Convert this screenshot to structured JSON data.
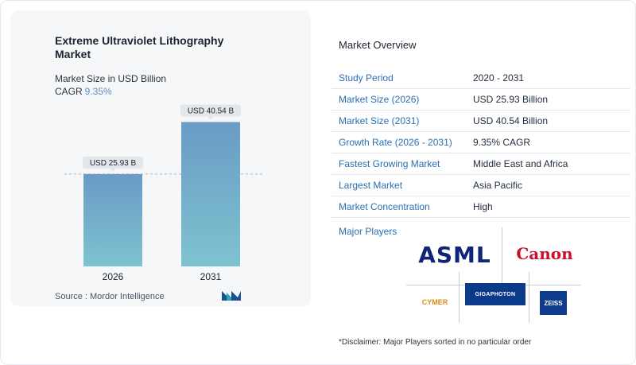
{
  "chart_data": {
    "type": "bar",
    "title": "Extreme Ultraviolet Lithography Market",
    "subtitle": "Market Size in USD Billion",
    "cagr_label": "CAGR",
    "cagr_value": "9.35%",
    "categories": [
      "2026",
      "2031"
    ],
    "values": [
      25.93,
      40.54
    ],
    "data_labels": [
      "USD 25.93 B",
      "USD 40.54 B"
    ],
    "ylim": [
      0,
      46
    ],
    "grid": false,
    "colors": {
      "bar_top": "#6a9bc6",
      "bar_bottom": "#7ec3cf",
      "label_bg": "#e3e6ea"
    }
  },
  "source": "Source :  Mordor Intelligence",
  "overview": {
    "title": "Market Overview",
    "rows": [
      {
        "label": "Study Period",
        "value": "2020 - 2031"
      },
      {
        "label": "Market Size (2026)",
        "value": "USD 25.93 Billion"
      },
      {
        "label": "Market Size (2031)",
        "value": "USD 40.54 Billion"
      },
      {
        "label": "Growth Rate (2026 - 2031)",
        "value": "9.35% CAGR"
      },
      {
        "label": "Fastest Growing Market",
        "value": "Middle East and Africa"
      },
      {
        "label": "Largest Market",
        "value": "Asia Pacific"
      },
      {
        "label": "Market Concentration",
        "value": "High"
      }
    ]
  },
  "players": {
    "label": "Major Players",
    "asml": "ASML",
    "canon": "Canon",
    "cymer": "CYMER",
    "gigaphoton": "GIGAPHOTON",
    "zeiss": "ZEISS"
  },
  "disclaimer": "*Disclaimer: Major Players sorted in no particular order"
}
